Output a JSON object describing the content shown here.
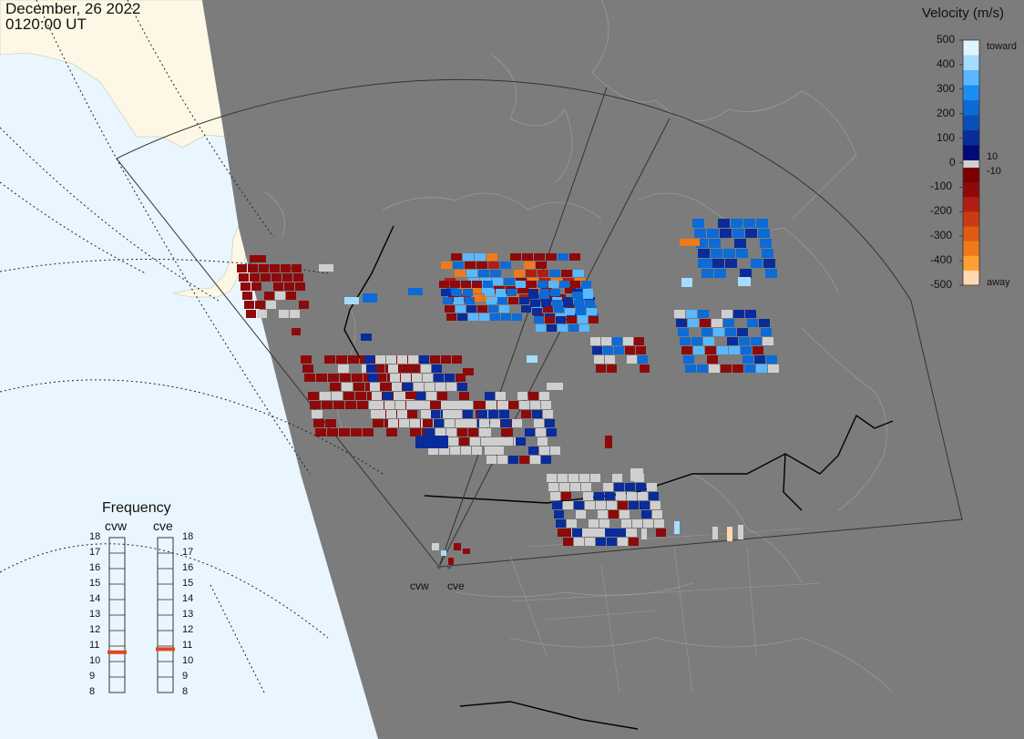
{
  "header": {
    "date": "December, 26 2022",
    "time": "0120:00 UT"
  },
  "colorbar": {
    "title": "Velocity (m/s)",
    "ticks": [
      "500",
      "400",
      "300",
      "200",
      "100",
      "0",
      "-100",
      "-200",
      "-300",
      "-400",
      "-500"
    ],
    "threshold_pos": "10",
    "threshold_neg": "-10",
    "top_label": "toward",
    "bottom_label": "away",
    "colors": {
      "toward": [
        "#dff4ff",
        "#a6dcff",
        "#5ab8ff",
        "#1b8ef2",
        "#0d6bd6",
        "#0a4fb8",
        "#0a2c9a",
        "#000a78"
      ],
      "away": [
        "#7a0000",
        "#8e0a0a",
        "#b01e12",
        "#cc3a12",
        "#e05a10",
        "#f07a1a",
        "#ffa030",
        "#ffd8b0"
      ]
    }
  },
  "frequency": {
    "title": "Frequency",
    "radars": [
      {
        "name": "cvw",
        "value_mhz": 10.6
      },
      {
        "name": "cve",
        "value_mhz": 10.8
      }
    ],
    "ticks": [
      "18",
      "17",
      "16",
      "15",
      "14",
      "13",
      "12",
      "11",
      "10",
      "9",
      "8"
    ],
    "range": [
      8,
      18
    ],
    "marker_color": "#e0481a"
  },
  "radar_sites": [
    {
      "name": "cvw"
    },
    {
      "name": "cve"
    }
  ],
  "map": {
    "background_ocean": "#eaf6ff",
    "land_outside": "#fdf8e6",
    "night_shade": "#7c7c7c",
    "ground_scatter": "#cfcfcf"
  }
}
